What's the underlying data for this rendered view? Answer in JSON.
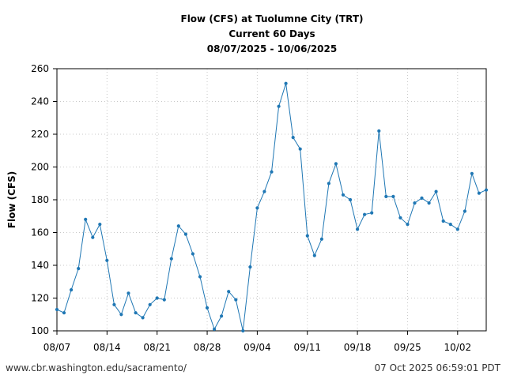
{
  "chart_data": {
    "type": "line",
    "title_lines": [
      "Flow (CFS) at Tuolumne City (TRT)",
      "Current 60 Days",
      "08/07/2025 - 10/06/2025"
    ],
    "xlabel": "",
    "ylabel": "Flow (CFS)",
    "ylim": [
      100,
      260
    ],
    "yticks": [
      100,
      120,
      140,
      160,
      180,
      200,
      220,
      240,
      260
    ],
    "xrange_days": [
      0,
      60
    ],
    "xticks": [
      {
        "day": 0,
        "label": "08/07"
      },
      {
        "day": 7,
        "label": "08/14"
      },
      {
        "day": 14,
        "label": "08/21"
      },
      {
        "day": 21,
        "label": "08/28"
      },
      {
        "day": 28,
        "label": "09/04"
      },
      {
        "day": 35,
        "label": "09/11"
      },
      {
        "day": 42,
        "label": "09/18"
      },
      {
        "day": 49,
        "label": "09/25"
      },
      {
        "day": 56,
        "label": "10/02"
      }
    ],
    "grid": true,
    "series": [
      {
        "color": "#1f77b4",
        "values": [
          113,
          111,
          125,
          138,
          168,
          157,
          165,
          143,
          116,
          110,
          123,
          111,
          108,
          116,
          120,
          119,
          144,
          164,
          159,
          147,
          133,
          114,
          101,
          109,
          124,
          119,
          100,
          139,
          175,
          185,
          197,
          237,
          251,
          218,
          211,
          158,
          146,
          156,
          190,
          202,
          183,
          180,
          162,
          171,
          172,
          222,
          182,
          182,
          169,
          165,
          178,
          181,
          178,
          185,
          167,
          165,
          162,
          173,
          196,
          184,
          186
        ]
      }
    ]
  },
  "footer": {
    "url": "www.cbr.washington.edu/sacramento/",
    "timestamp": "07 Oct 2025 06:59:01 PDT"
  }
}
